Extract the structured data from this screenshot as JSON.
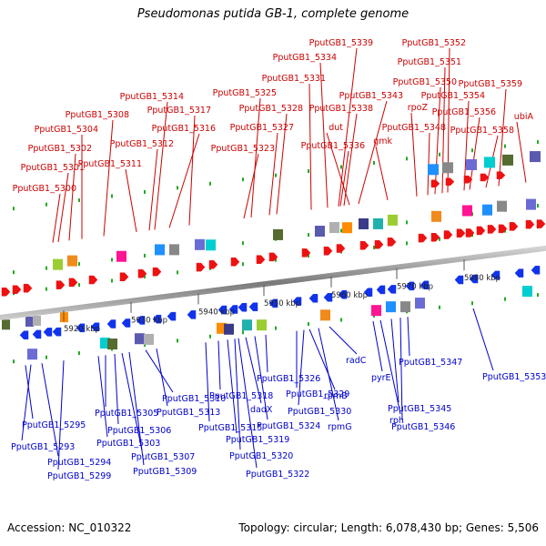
{
  "title": "Pseudomonas putida GB-1, complete genome",
  "footer": {
    "accession": "Accession: NC_010322",
    "topology": "Topology: circular; Length: 6,078,430 bp; Genes: 5,506"
  },
  "colors": {
    "forward_label": "#cc0000",
    "reverse_label": "#0000cc",
    "forward_arrow": "#ee1111",
    "reverse_arrow": "#1133ee",
    "backbone": "#999999"
  },
  "ticks": [
    "5920 kbp",
    "5930 kbp",
    "5940 kbp",
    "5950 kbp",
    "5960 kbp",
    "5970 kbp",
    "5980 kbp"
  ],
  "forward_labels": [
    "PputGB1_5300",
    "PputGB1_5301",
    "PputGB1_5302",
    "PputGB1_5304",
    "PputGB1_5308",
    "PputGB1_5311",
    "PputGB1_5312",
    "PputGB1_5314",
    "PputGB1_5316",
    "PputGB1_5317",
    "PputGB1_5323",
    "PputGB1_5325",
    "PputGB1_5327",
    "PputGB1_5328",
    "PputGB1_5331",
    "PputGB1_5334",
    "PputGB1_5336",
    "PputGB1_5338",
    "PputGB1_5339",
    "dut",
    "PputGB1_5343",
    "gmk",
    "rpoZ",
    "PputGB1_5348",
    "PputGB1_5350",
    "PputGB1_5351",
    "PputGB1_5352",
    "PputGB1_5354",
    "PputGB1_5356",
    "PputGB1_5358",
    "PputGB1_5359",
    "ubiA"
  ],
  "reverse_labels": [
    "PputGB1_5293",
    "PputGB1_5294",
    "PputGB1_5295",
    "PputGB1_5299",
    "PputGB1_5303",
    "PputGB1_5305",
    "PputGB1_5306",
    "PputGB1_5307",
    "PputGB1_5309",
    "PputGB1_5310",
    "PputGB1_5313",
    "PputGB1_5315",
    "PputGB1_5318",
    "PputGB1_5319",
    "PputGB1_5320",
    "PputGB1_5322",
    "dadX",
    "PputGB1_5324",
    "PputGB1_5326",
    "rpmB",
    "PputGB1_5329",
    "PputGB1_5330",
    "rpmG",
    "radC",
    "pyrE",
    "rph",
    "PputGB1_5345",
    "PputGB1_5346",
    "PputGB1_5347",
    "PputGB1_5353"
  ]
}
